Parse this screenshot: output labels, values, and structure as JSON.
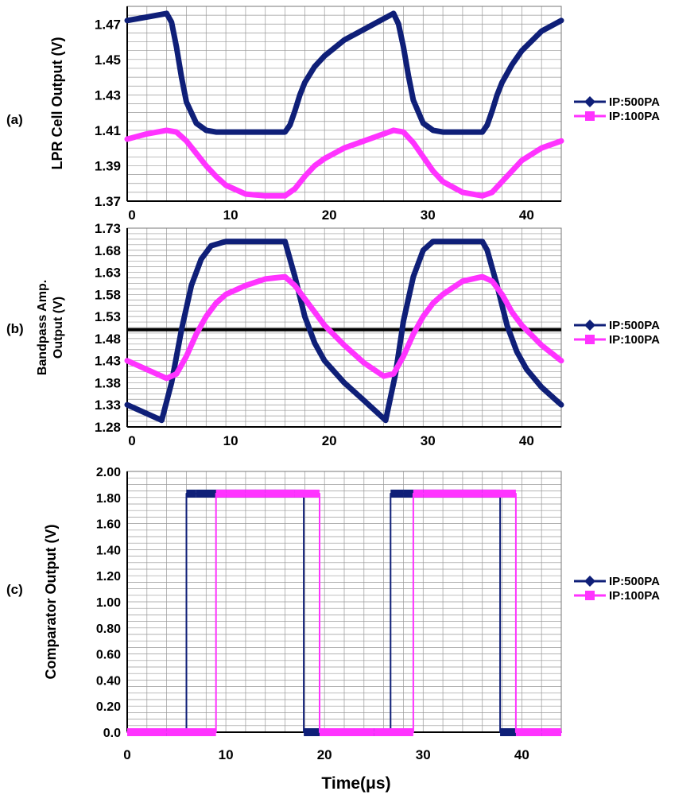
{
  "figure": {
    "xlabel": "Time(μs)"
  },
  "colors": {
    "ip500": "#0f1f78",
    "ip100": "#ff33ff",
    "grid": "#999999",
    "threshold": "#000000"
  },
  "chart_data": [
    {
      "type": "line",
      "panel_label": "(a)",
      "ylabel": "LPR Cell Output (V)",
      "xlim": [
        0,
        44
      ],
      "ylim": [
        1.37,
        1.48
      ],
      "yticks": [
        1.37,
        1.39,
        1.41,
        1.43,
        1.45,
        1.47
      ],
      "yticks_labels": [
        "1.37",
        "1.39",
        "1.41",
        "1.43",
        "1.45",
        "1.47"
      ],
      "xticks": [
        0,
        10,
        20,
        30,
        40
      ],
      "xticks_labels": [
        "0",
        "10",
        "20",
        "30",
        "40"
      ],
      "legend": [
        "IP:500PA",
        "IP:100PA"
      ],
      "series": [
        {
          "name": "IP:500PA",
          "x": [
            0,
            2,
            4,
            4.5,
            5,
            5.5,
            6,
            7,
            8,
            9,
            10,
            12,
            14,
            16,
            16.5,
            17,
            17.5,
            18,
            19,
            20,
            22,
            24,
            26,
            27,
            27.5,
            28,
            28.5,
            29,
            30,
            31,
            32,
            34,
            36,
            36.5,
            37,
            37.5,
            38,
            39,
            40,
            42,
            44
          ],
          "y": [
            1.472,
            1.474,
            1.476,
            1.471,
            1.457,
            1.44,
            1.426,
            1.414,
            1.41,
            1.409,
            1.409,
            1.409,
            1.409,
            1.409,
            1.413,
            1.421,
            1.43,
            1.437,
            1.446,
            1.452,
            1.461,
            1.467,
            1.473,
            1.476,
            1.47,
            1.457,
            1.441,
            1.427,
            1.414,
            1.41,
            1.409,
            1.409,
            1.409,
            1.413,
            1.421,
            1.43,
            1.437,
            1.447,
            1.455,
            1.466,
            1.472
          ]
        },
        {
          "name": "IP:100PA",
          "x": [
            0,
            2,
            4,
            5,
            6,
            7,
            8,
            9,
            10,
            12,
            14,
            16,
            17,
            18,
            19,
            20,
            22,
            24,
            26,
            27,
            28,
            29,
            30,
            31,
            32,
            34,
            36,
            37,
            38,
            39,
            40,
            42,
            44
          ],
          "y": [
            1.405,
            1.408,
            1.41,
            1.409,
            1.404,
            1.397,
            1.39,
            1.384,
            1.379,
            1.374,
            1.373,
            1.373,
            1.377,
            1.384,
            1.39,
            1.394,
            1.4,
            1.404,
            1.408,
            1.41,
            1.409,
            1.403,
            1.395,
            1.387,
            1.381,
            1.375,
            1.373,
            1.375,
            1.381,
            1.387,
            1.393,
            1.4,
            1.404
          ]
        }
      ]
    },
    {
      "type": "line",
      "panel_label": "(b)",
      "ylabel_lines": [
        "Bandpass Amp.",
        "Output (V)"
      ],
      "xlim": [
        0,
        44
      ],
      "ylim": [
        1.28,
        1.73
      ],
      "yticks": [
        1.28,
        1.33,
        1.38,
        1.43,
        1.48,
        1.53,
        1.58,
        1.63,
        1.68,
        1.73
      ],
      "yticks_labels": [
        "1.28",
        "1.33",
        "1.38",
        "1.43",
        "1.48",
        "1.53",
        "1.58",
        "1.63",
        "1.68",
        "1.73"
      ],
      "xticks": [
        0,
        10,
        20,
        30,
        40
      ],
      "xticks_labels": [
        "0",
        "10",
        "20",
        "30",
        "40"
      ],
      "threshold": 1.5,
      "legend": [
        "IP:500PA",
        "IP:100PA"
      ],
      "series": [
        {
          "name": "IP:500PA",
          "x": [
            0,
            2,
            3.5,
            4.5,
            5.5,
            6.5,
            7.5,
            8.5,
            10,
            12,
            14,
            16,
            17,
            18,
            19,
            20,
            22,
            24,
            26.2,
            27.2,
            28,
            29,
            30,
            31,
            32,
            34,
            36,
            36.5,
            37.5,
            38.5,
            39.5,
            40.5,
            42,
            44
          ],
          "y": [
            1.33,
            1.31,
            1.295,
            1.38,
            1.5,
            1.6,
            1.66,
            1.69,
            1.7,
            1.7,
            1.7,
            1.7,
            1.62,
            1.53,
            1.47,
            1.43,
            1.38,
            1.34,
            1.295,
            1.4,
            1.52,
            1.62,
            1.68,
            1.7,
            1.7,
            1.7,
            1.7,
            1.68,
            1.6,
            1.51,
            1.45,
            1.41,
            1.37,
            1.33
          ]
        },
        {
          "name": "IP:100PA",
          "x": [
            0,
            2,
            4,
            5,
            6,
            7,
            8,
            9,
            10,
            12,
            14,
            16,
            17,
            18,
            20,
            22,
            24,
            26,
            27,
            28,
            29,
            30,
            31,
            32,
            34,
            36,
            37,
            38,
            39,
            40,
            42,
            44
          ],
          "y": [
            1.43,
            1.41,
            1.39,
            1.4,
            1.44,
            1.49,
            1.53,
            1.56,
            1.58,
            1.6,
            1.615,
            1.62,
            1.6,
            1.57,
            1.51,
            1.465,
            1.425,
            1.395,
            1.4,
            1.44,
            1.49,
            1.53,
            1.56,
            1.58,
            1.61,
            1.62,
            1.61,
            1.58,
            1.54,
            1.51,
            1.465,
            1.43
          ]
        }
      ]
    },
    {
      "type": "line",
      "panel_label": "(c)",
      "ylabel": "Comparator Output (V)",
      "xlim": [
        0,
        44
      ],
      "ylim": [
        0,
        2.0
      ],
      "yticks": [
        0,
        0.2,
        0.4,
        0.6,
        0.8,
        1.0,
        1.2,
        1.4,
        1.6,
        1.8,
        2.0
      ],
      "yticks_labels": [
        "0.0",
        "0.20",
        "0.40",
        "0.60",
        "0.80",
        "1.00",
        "1.20",
        "1.40",
        "1.60",
        "1.80",
        "2.00"
      ],
      "xticks": [
        0,
        10,
        20,
        30,
        40
      ],
      "xticks_labels": [
        "0",
        "10",
        "20",
        "30",
        "40"
      ],
      "legend": [
        "IP:500PA",
        "IP:100PA"
      ],
      "series": [
        {
          "name": "IP:500PA",
          "x": [
            0,
            6,
            6,
            7,
            10,
            12,
            14,
            17,
            17.9,
            17.9,
            20,
            24,
            26.7,
            26.7,
            28,
            32,
            35,
            37.8,
            37.8,
            40,
            44
          ],
          "y": [
            0,
            0,
            1.83,
            1.83,
            1.83,
            1.83,
            1.83,
            1.83,
            1.83,
            0,
            0,
            0,
            0,
            1.83,
            1.83,
            1.83,
            1.83,
            1.83,
            0,
            0,
            0
          ]
        },
        {
          "name": "IP:100PA",
          "x": [
            0,
            4,
            9,
            9,
            10,
            12,
            14,
            17,
            19.5,
            19.5,
            22,
            25,
            29,
            29,
            30,
            33,
            36,
            39.4,
            39.4,
            42,
            44
          ],
          "y": [
            0,
            0,
            0,
            1.83,
            1.83,
            1.83,
            1.83,
            1.83,
            1.83,
            0,
            0,
            0,
            0,
            1.83,
            1.83,
            1.83,
            1.83,
            1.83,
            0,
            0,
            0
          ]
        }
      ]
    }
  ]
}
